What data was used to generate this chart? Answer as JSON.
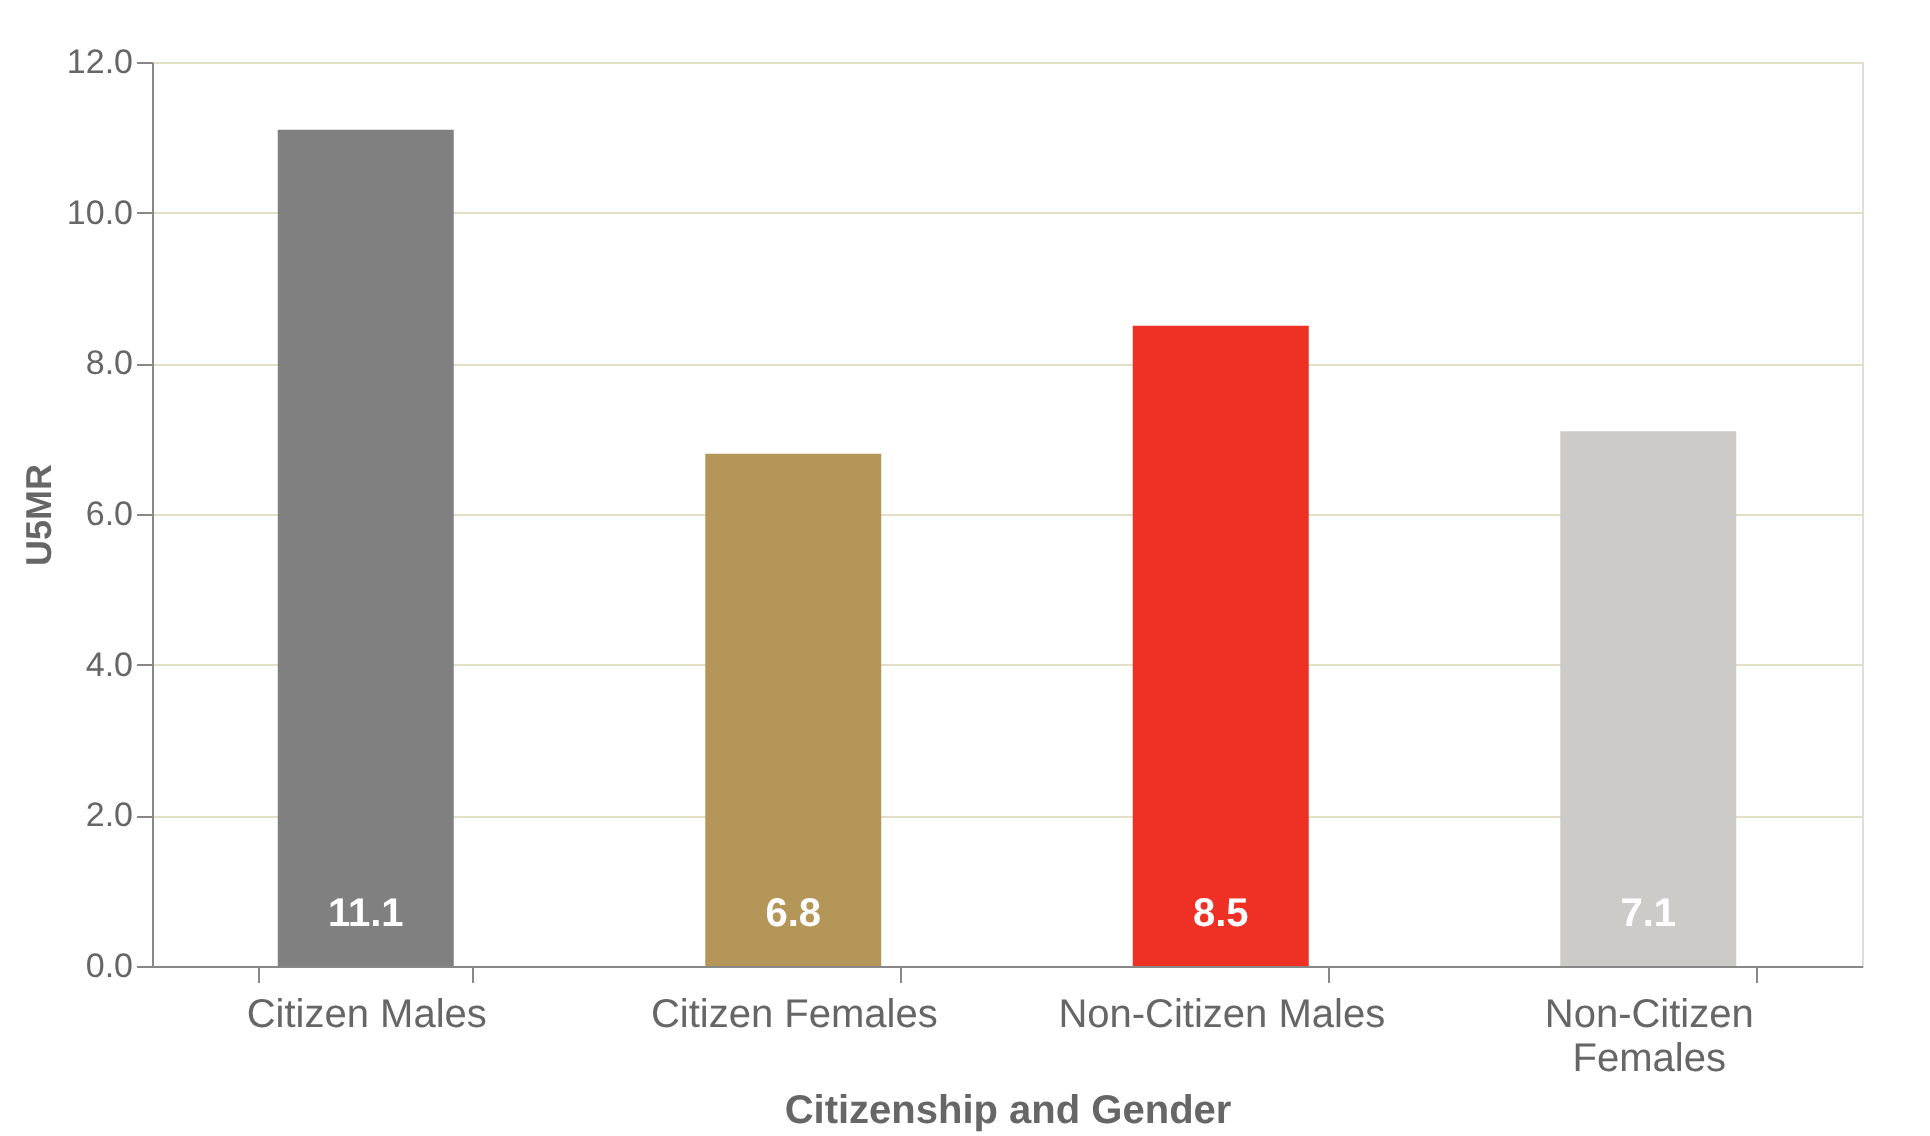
{
  "chart_data": {
    "type": "bar",
    "xlabel": "Citizenship and Gender",
    "ylabel": "U5MR",
    "categories": [
      "Citizen Males",
      "Citizen Females",
      "Non-Citizen Males",
      "Non-Citizen Females"
    ],
    "values": [
      11.1,
      6.8,
      8.5,
      7.1
    ],
    "colors": [
      "#808080",
      "#b39658",
      "#ee3124",
      "#cdcbc8"
    ],
    "ylim": [
      0,
      12
    ],
    "yticks": [
      {
        "value": 0,
        "label": "0.0"
      },
      {
        "value": 2,
        "label": "2.0"
      },
      {
        "value": 4,
        "label": "4.0"
      },
      {
        "value": 6,
        "label": "6.0"
      },
      {
        "value": 8,
        "label": "8.0"
      },
      {
        "value": 10,
        "label": "10.0"
      },
      {
        "value": 12,
        "label": "12.0"
      }
    ],
    "grid": "y",
    "data_labels": true
  }
}
